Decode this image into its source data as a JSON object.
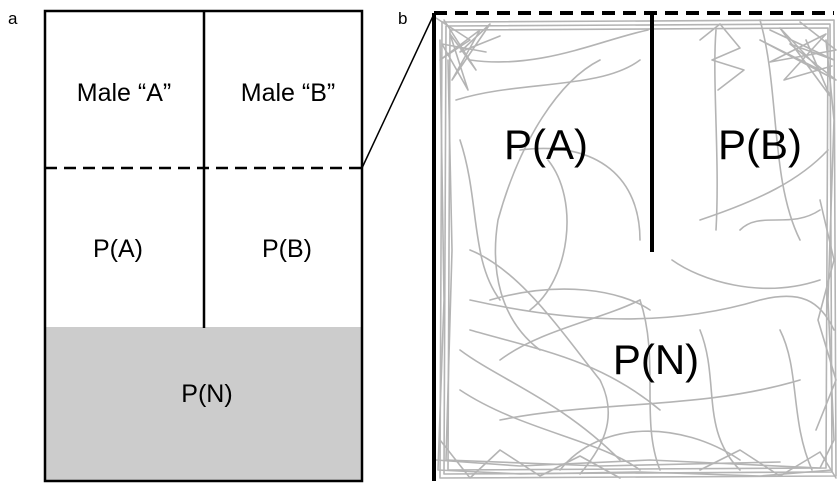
{
  "panels": {
    "a": {
      "letter": "a",
      "male_a": "Male “A”",
      "male_b": "Male “B”",
      "p_a": "P(A)",
      "p_b": "P(B)",
      "p_n": "P(N)",
      "shade_color": "#cccccc"
    },
    "b": {
      "letter": "b",
      "p_a": "P(A)",
      "p_b": "P(B)",
      "p_n": "P(N)",
      "trace_color": "#b4b4b4"
    }
  }
}
